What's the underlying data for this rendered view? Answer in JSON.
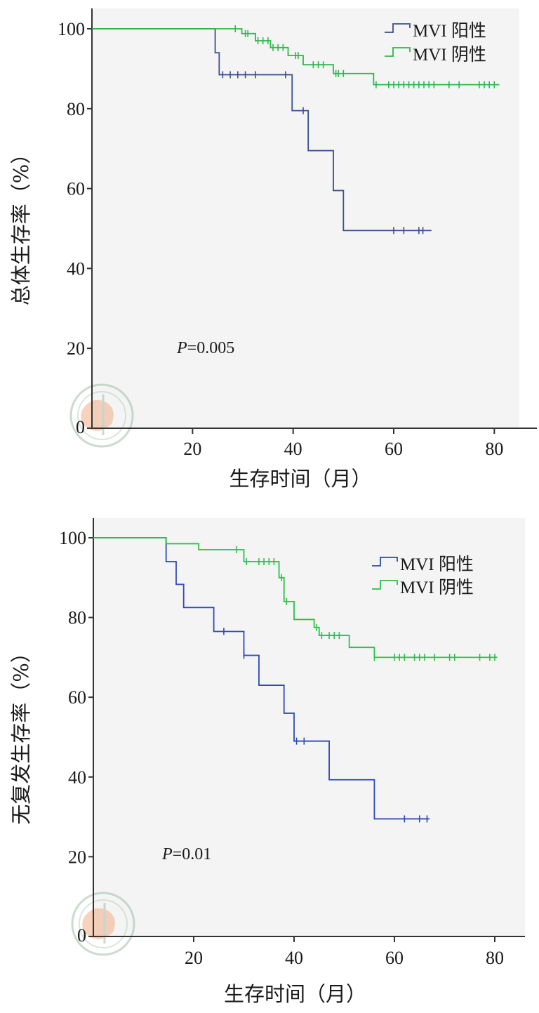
{
  "chart_data": [
    {
      "type": "line",
      "subtype": "kaplan-meier",
      "ylabel": "总体生存率（%）",
      "xlabel": "生存时间（月）",
      "xticks": [
        20,
        40,
        60,
        80
      ],
      "yticks": [
        0,
        20,
        40,
        60,
        80,
        100
      ],
      "xlim": [
        0,
        89
      ],
      "ylim": [
        0,
        105
      ],
      "annotation_p": "P",
      "annotation_value": "=0.005",
      "series": [
        {
          "name": "MVI 阳性",
          "color": "#3b4f8f",
          "steps": [
            [
              0,
              100
            ],
            [
              24.5,
              94
            ],
            [
              25.3,
              88.5
            ],
            [
              39.8,
              79.5
            ],
            [
              43,
              69.5
            ],
            [
              48,
              59.5
            ],
            [
              50,
              49.5
            ],
            [
              67.5,
              49.5
            ]
          ],
          "censored": [
            26,
            27.5,
            29,
            30.5,
            32.5,
            38.5,
            42,
            60,
            62,
            65,
            65.8
          ]
        },
        {
          "name": "MVI 阴性",
          "color": "#2db84a",
          "steps": [
            [
              0,
              100
            ],
            [
              28,
              100
            ],
            [
              29.8,
              98.8
            ],
            [
              32.5,
              97
            ],
            [
              35.5,
              95.3
            ],
            [
              39,
              93.3
            ],
            [
              42,
              91
            ],
            [
              48,
              88.8
            ],
            [
              56,
              86
            ],
            [
              81,
              86
            ]
          ],
          "censored": [
            28.5,
            30.5,
            31,
            33,
            34,
            35,
            36,
            37,
            38,
            40.5,
            41,
            44,
            45,
            46,
            48.5,
            49,
            50,
            56.5,
            59,
            60,
            61,
            62,
            63,
            64,
            65,
            66,
            67,
            68,
            71,
            73,
            77,
            78,
            79,
            80
          ]
        }
      ]
    },
    {
      "type": "line",
      "subtype": "kaplan-meier",
      "ylabel": "无复发生存率（%）",
      "xlabel": "生存时间（月）",
      "xticks": [
        20,
        40,
        60,
        80
      ],
      "yticks": [
        0,
        20,
        40,
        60,
        80,
        100
      ],
      "xlim": [
        0,
        86
      ],
      "ylim": [
        0,
        105
      ],
      "annotation_p": "P",
      "annotation_value": "=0.01",
      "series": [
        {
          "name": "MVI 阳性",
          "color": "#2f4bb5",
          "steps": [
            [
              0,
              100
            ],
            [
              14.5,
              94
            ],
            [
              16.5,
              88.3
            ],
            [
              18,
              82.5
            ],
            [
              24,
              76.5
            ],
            [
              30,
              70.5
            ],
            [
              33,
              63
            ],
            [
              38,
              56
            ],
            [
              40,
              49
            ],
            [
              47,
              39.3
            ],
            [
              56,
              29.5
            ],
            [
              67,
              29.5
            ]
          ],
          "censored": [
            26,
            30,
            40.5,
            42,
            62,
            65,
            66.5
          ]
        },
        {
          "name": "MVI 阴性",
          "color": "#2bc04a",
          "steps": [
            [
              0,
              100
            ],
            [
              14.5,
              98.5
            ],
            [
              21,
              97
            ],
            [
              30,
              94
            ],
            [
              37,
              90
            ],
            [
              38,
              84
            ],
            [
              40,
              79.5
            ],
            [
              44,
              77.5
            ],
            [
              45,
              75.5
            ],
            [
              51,
              72.5
            ],
            [
              56,
              70
            ],
            [
              80.5,
              70
            ]
          ],
          "censored": [
            28.5,
            30.5,
            33,
            34,
            35,
            36,
            37.5,
            38.5,
            44.5,
            45.5,
            47,
            48,
            49,
            56,
            60,
            61,
            62,
            64,
            65,
            66,
            68,
            71,
            72,
            77,
            79,
            80
          ]
        }
      ]
    }
  ]
}
